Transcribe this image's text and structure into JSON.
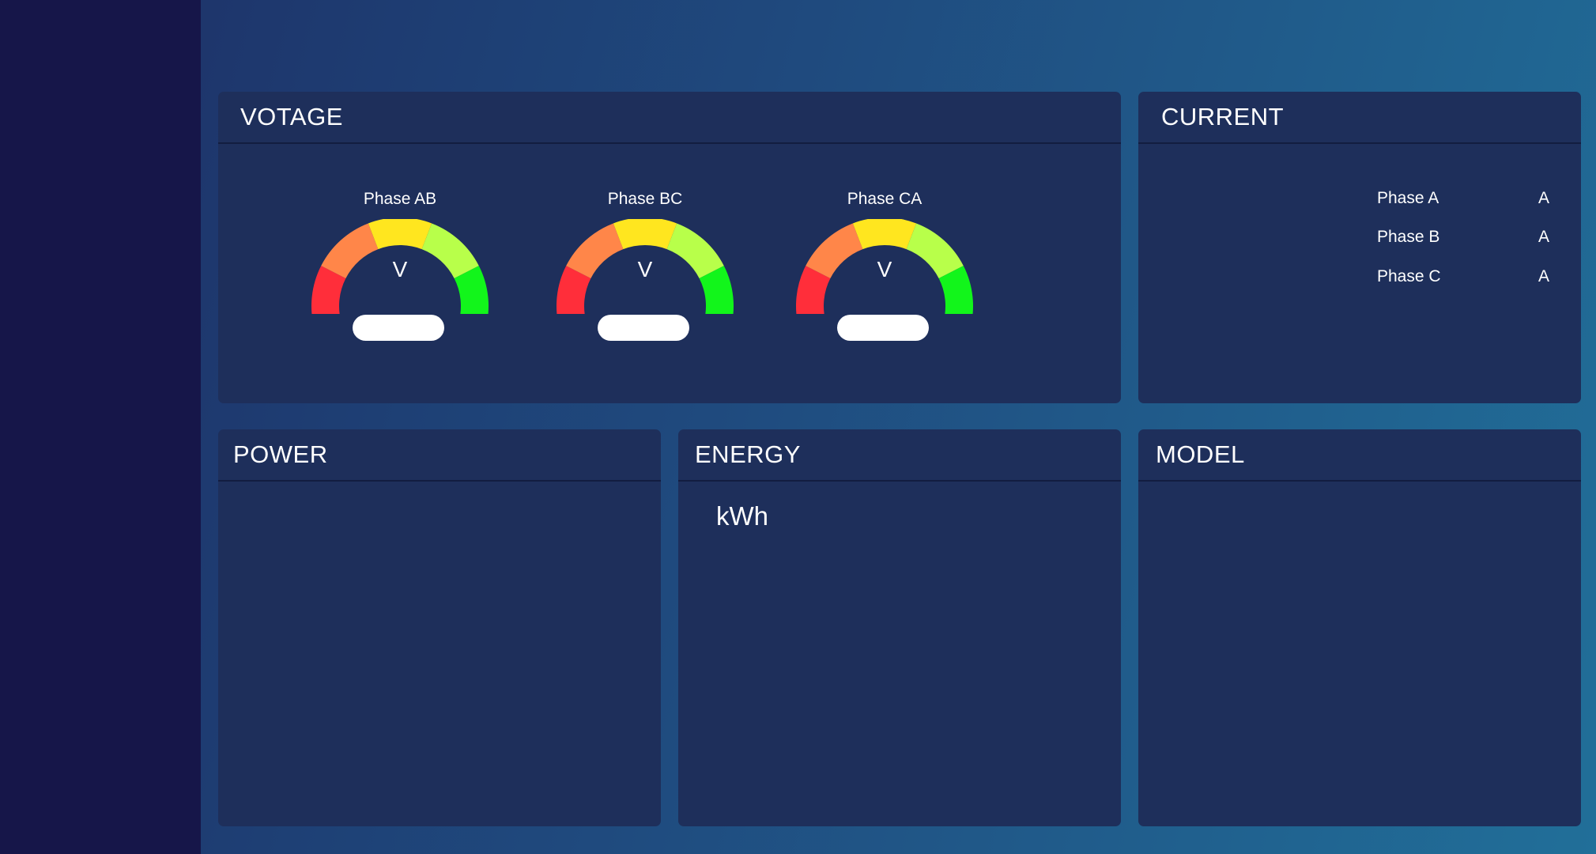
{
  "voltage": {
    "title": "VOTAGE",
    "gauges": [
      {
        "label": "Phase AB",
        "unit": "V"
      },
      {
        "label": "Phase BC",
        "unit": "V"
      },
      {
        "label": "Phase CA",
        "unit": "V"
      }
    ],
    "gauge_band_colors": [
      "#ff2e3a",
      "#ff8649",
      "#ffe61f",
      "#b8ff4a",
      "#12f51b"
    ]
  },
  "current": {
    "title": "CURRENT",
    "rows": [
      {
        "label": "Phase A",
        "unit": "A"
      },
      {
        "label": "Phase B",
        "unit": "A"
      },
      {
        "label": "Phase C",
        "unit": "A"
      }
    ]
  },
  "power": {
    "title": "POWER"
  },
  "energy": {
    "title": "ENERGY",
    "unit": "kWh"
  },
  "model": {
    "title": "MODEL"
  },
  "colors": {
    "sidebar": "#161649",
    "panel": "#1e2f5b",
    "text": "#ffffff"
  }
}
